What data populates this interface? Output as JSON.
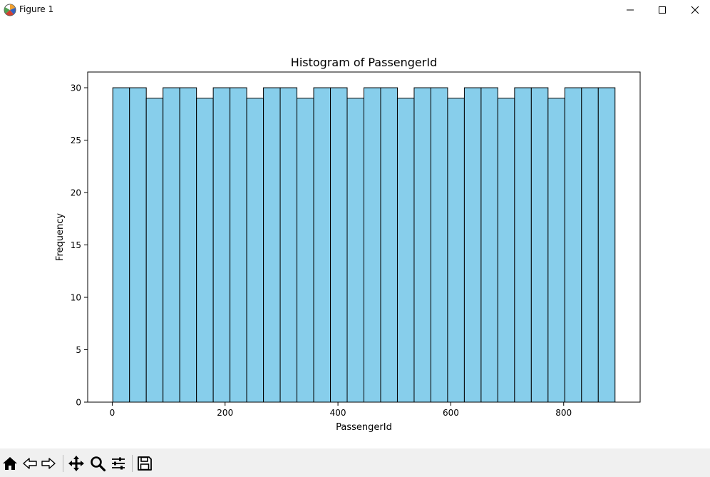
{
  "window": {
    "title": "Figure 1",
    "icon": "matplotlib-icon"
  },
  "window_controls": {
    "minimize_icon": "minimize-icon",
    "maximize_icon": "maximize-icon",
    "close_icon": "close-icon"
  },
  "toolbar": {
    "buttons": [
      {
        "name": "home",
        "icon": "home-icon"
      },
      {
        "name": "back",
        "icon": "back-arrow-icon"
      },
      {
        "name": "forward",
        "icon": "forward-arrow-icon"
      },
      {
        "name": "pan",
        "icon": "move-icon"
      },
      {
        "name": "zoom",
        "icon": "magnifier-icon"
      },
      {
        "name": "configure-subplots",
        "icon": "sliders-icon"
      },
      {
        "name": "save",
        "icon": "floppy-disk-icon"
      }
    ]
  },
  "colors": {
    "bar_fill": "#87ceeb",
    "bar_edge": "#000000",
    "toolbar_bg": "#f0f0f0"
  },
  "chart_data": {
    "type": "bar",
    "title": "Histogram of PassengerId",
    "xlabel": "PassengerId",
    "ylabel": "Frequency",
    "bin_start": 1,
    "bin_end": 891,
    "bin_count": 30,
    "values": [
      30,
      30,
      29,
      30,
      30,
      29,
      30,
      30,
      29,
      30,
      30,
      29,
      30,
      30,
      29,
      30,
      30,
      29,
      30,
      30,
      29,
      30,
      30,
      29,
      30,
      30,
      29,
      30,
      30,
      30
    ],
    "xlim": [
      -43.5,
      935.5
    ],
    "ylim": [
      0,
      31.5
    ],
    "xticks": [
      0,
      200,
      400,
      600,
      800
    ],
    "xtick_labels": [
      "0",
      "200",
      "400",
      "600",
      "800"
    ],
    "yticks": [
      0,
      5,
      10,
      15,
      20,
      25,
      30
    ],
    "ytick_labels": [
      "0",
      "5",
      "10",
      "15",
      "20",
      "25",
      "30"
    ],
    "grid": false,
    "legend": "none"
  }
}
